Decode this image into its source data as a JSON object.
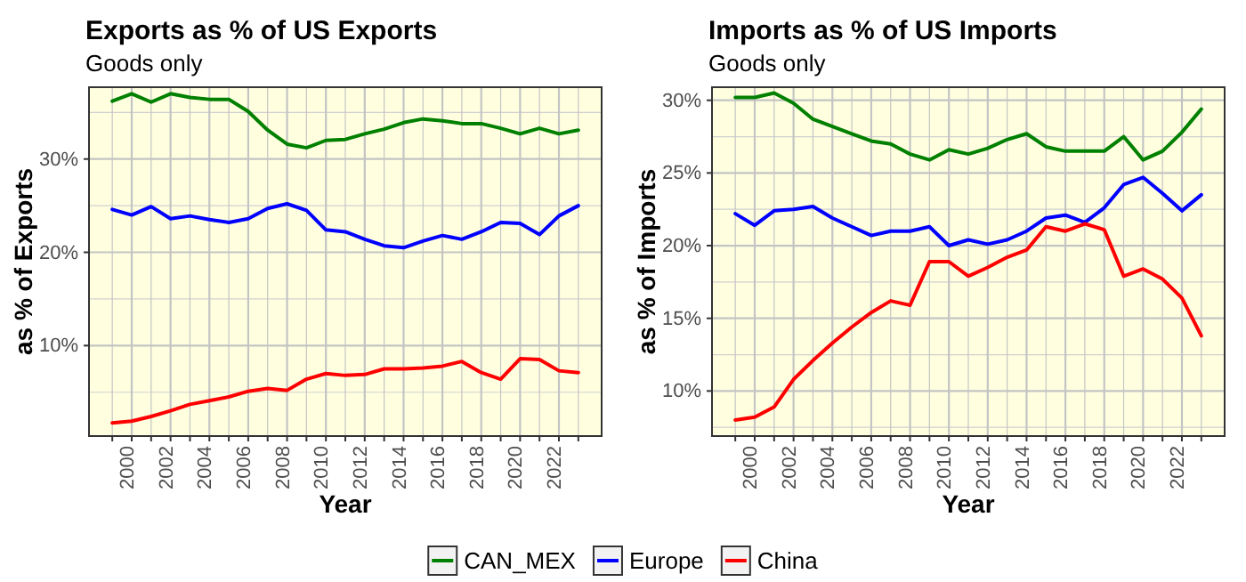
{
  "chart_data": [
    {
      "type": "line",
      "title": "Exports as % of US Exports",
      "subtitle": "Goods only",
      "xlabel": "Year",
      "ylabel": "as % of Exports",
      "x": [
        1999,
        2000,
        2001,
        2002,
        2003,
        2004,
        2005,
        2006,
        2007,
        2008,
        2009,
        2010,
        2011,
        2012,
        2013,
        2014,
        2015,
        2016,
        2017,
        2018,
        2019,
        2020,
        2021,
        2022,
        2023
      ],
      "series": [
        {
          "name": "CAN_MEX",
          "color": "#008000",
          "values": [
            36.2,
            37.0,
            36.1,
            37.0,
            36.6,
            36.4,
            36.4,
            35.1,
            33.1,
            31.6,
            31.2,
            32.0,
            32.1,
            32.7,
            33.2,
            33.9,
            34.3,
            34.1,
            33.8,
            33.8,
            33.3,
            32.7,
            33.3,
            32.7,
            33.1
          ]
        },
        {
          "name": "Europe",
          "color": "#0000ff",
          "values": [
            24.6,
            24.0,
            24.9,
            23.6,
            23.9,
            23.5,
            23.2,
            23.6,
            24.7,
            25.2,
            24.5,
            22.4,
            22.2,
            21.4,
            20.7,
            20.5,
            21.2,
            21.8,
            21.4,
            22.2,
            23.2,
            23.1,
            21.9,
            23.9,
            25.0
          ]
        },
        {
          "name": "China",
          "color": "#ff0000",
          "values": [
            1.7,
            1.9,
            2.4,
            3.0,
            3.7,
            4.1,
            4.5,
            5.1,
            5.4,
            5.2,
            6.4,
            7.0,
            6.8,
            6.9,
            7.5,
            7.5,
            7.6,
            7.8,
            8.3,
            7.1,
            6.4,
            8.6,
            8.5,
            7.3,
            7.1
          ]
        }
      ],
      "xlim": [
        1997.8,
        2024.2
      ],
      "xticks": [
        {
          "value": 1999,
          "label": null
        },
        2000,
        {
          "value": 2001,
          "label": null
        },
        2002,
        {
          "value": 2003,
          "label": null
        },
        2004,
        {
          "value": 2005,
          "label": null
        },
        2006,
        {
          "value": 2007,
          "label": null
        },
        2008,
        {
          "value": 2009,
          "label": null
        },
        2010,
        {
          "value": 2011,
          "label": null
        },
        2012,
        {
          "value": 2013,
          "label": null
        },
        2014,
        {
          "value": 2015,
          "label": null
        },
        2016,
        {
          "value": 2017,
          "label": null
        },
        2018,
        {
          "value": 2019,
          "label": null
        },
        2020,
        {
          "value": 2021,
          "label": null
        },
        2022,
        {
          "value": 2023,
          "label": null
        }
      ],
      "ylim": [
        0.3,
        37.7
      ],
      "yticks": [
        {
          "value": 10,
          "label": "10%"
        },
        {
          "value": 20,
          "label": "20%"
        },
        {
          "value": 30,
          "label": "30%"
        }
      ],
      "grid": true,
      "legend": "bottom"
    },
    {
      "type": "line",
      "title": "Imports as % of US Imports",
      "subtitle": "Goods only",
      "xlabel": "Year",
      "ylabel": "as % of Imports",
      "x": [
        1999,
        2000,
        2001,
        2002,
        2003,
        2004,
        2005,
        2006,
        2007,
        2008,
        2009,
        2010,
        2011,
        2012,
        2013,
        2014,
        2015,
        2016,
        2017,
        2018,
        2019,
        2020,
        2021,
        2022,
        2023
      ],
      "series": [
        {
          "name": "CAN_MEX",
          "color": "#008000",
          "values": [
            30.2,
            30.2,
            30.5,
            29.8,
            28.7,
            28.2,
            27.7,
            27.2,
            27.0,
            26.3,
            25.9,
            26.6,
            26.3,
            26.7,
            27.3,
            27.7,
            26.8,
            26.5,
            26.5,
            26.5,
            27.5,
            25.9,
            26.5,
            27.8,
            29.4
          ]
        },
        {
          "name": "Europe",
          "color": "#0000ff",
          "values": [
            22.2,
            21.4,
            22.4,
            22.5,
            22.7,
            21.9,
            21.3,
            20.7,
            21.0,
            21.0,
            21.3,
            20.0,
            20.4,
            20.1,
            20.4,
            21.0,
            21.9,
            22.1,
            21.6,
            22.6,
            24.2,
            24.7,
            23.6,
            22.4,
            23.5
          ]
        },
        {
          "name": "China",
          "color": "#ff0000",
          "values": [
            8.0,
            8.2,
            8.9,
            10.8,
            12.1,
            13.3,
            14.4,
            15.4,
            16.2,
            15.9,
            18.9,
            18.9,
            17.9,
            18.5,
            19.2,
            19.7,
            21.3,
            21.0,
            21.5,
            21.1,
            17.9,
            18.4,
            17.7,
            16.4,
            13.8
          ]
        }
      ],
      "xlim": [
        1997.8,
        2024.2
      ],
      "xticks": [
        {
          "value": 1999,
          "label": null
        },
        2000,
        {
          "value": 2001,
          "label": null
        },
        2002,
        {
          "value": 2003,
          "label": null
        },
        2004,
        {
          "value": 2005,
          "label": null
        },
        2006,
        {
          "value": 2007,
          "label": null
        },
        2008,
        {
          "value": 2009,
          "label": null
        },
        2010,
        {
          "value": 2011,
          "label": null
        },
        2012,
        {
          "value": 2013,
          "label": null
        },
        2014,
        {
          "value": 2015,
          "label": null
        },
        2016,
        {
          "value": 2017,
          "label": null
        },
        2018,
        {
          "value": 2019,
          "label": null
        },
        2020,
        {
          "value": 2021,
          "label": null
        },
        2022,
        {
          "value": 2023,
          "label": null
        }
      ],
      "ylim": [
        6.9,
        30.9
      ],
      "yticks": [
        {
          "value": 10,
          "label": "10%"
        },
        {
          "value": 15,
          "label": "15%"
        },
        {
          "value": 20,
          "label": "20%"
        },
        {
          "value": 25,
          "label": "25%"
        },
        {
          "value": 30,
          "label": "30%"
        }
      ],
      "grid": true,
      "legend": "bottom"
    }
  ]
}
